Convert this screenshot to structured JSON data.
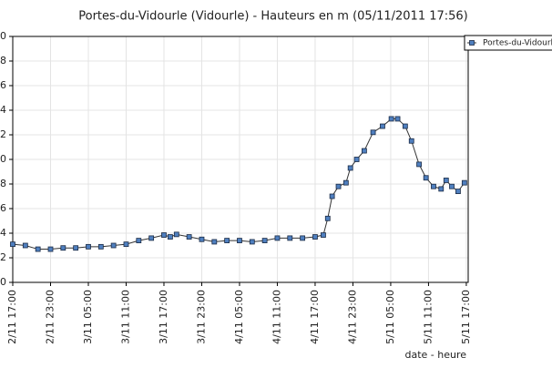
{
  "chart_data": {
    "type": "line",
    "title": "Portes-du-Vidourle (Vidourle) - Hauteurs en m (05/11/2011 17:56)",
    "x_label": "date - heure",
    "series": [
      {
        "name": "Portes-du-Vidourle",
        "color": "#4f7fbf",
        "x": [
          0,
          2,
          4,
          6,
          8,
          10,
          12,
          14,
          16,
          18,
          20,
          22,
          24,
          25,
          26,
          28,
          30,
          32,
          34,
          36,
          38,
          40,
          42,
          44,
          46,
          48,
          49.3,
          50,
          50.7,
          51.7,
          52.9,
          53.6,
          54.6,
          55.8,
          57.2,
          58.7,
          60.1,
          61.1,
          62.3,
          63.3,
          64.5,
          65.6,
          66.8,
          68,
          68.8,
          69.7,
          70.7,
          71.7
        ],
        "values": [
          0.31,
          0.3,
          0.27,
          0.27,
          0.28,
          0.28,
          0.29,
          0.29,
          0.3,
          0.31,
          0.34,
          0.36,
          0.385,
          0.37,
          0.39,
          0.37,
          0.35,
          0.33,
          0.34,
          0.34,
          0.33,
          0.34,
          0.36,
          0.36,
          0.36,
          0.37,
          0.385,
          0.52,
          0.7,
          0.78,
          0.81,
          0.93,
          1.0,
          1.07,
          1.22,
          1.27,
          1.33,
          1.33,
          1.27,
          1.15,
          0.96,
          0.85,
          0.78,
          0.76,
          0.83,
          0.78,
          0.74,
          0.81
        ]
      }
    ],
    "xlim": [
      0,
      72.3
    ],
    "xticks": [
      {
        "value": 0,
        "label": "2/11 17:00"
      },
      {
        "value": 6,
        "label": "2/11 23:00"
      },
      {
        "value": 12,
        "label": "3/11 05:00"
      },
      {
        "value": 18,
        "label": "3/11 11:00"
      },
      {
        "value": 24,
        "label": "3/11 17:00"
      },
      {
        "value": 30,
        "label": "3/11 23:00"
      },
      {
        "value": 36,
        "label": "4/11 05:00"
      },
      {
        "value": 42,
        "label": "4/11 11:00"
      },
      {
        "value": 48,
        "label": "4/11 17:00"
      },
      {
        "value": 54,
        "label": "4/11 23:00"
      },
      {
        "value": 60,
        "label": "5/11 05:00"
      },
      {
        "value": 66,
        "label": "5/11 11:00"
      },
      {
        "value": 72,
        "label": "5/11 17:00"
      }
    ],
    "ylim": [
      0,
      2
    ],
    "yticks": [
      0,
      {
        "value": 0.2,
        "label": "2"
      },
      {
        "value": 0.4,
        "label": "4"
      },
      {
        "value": 0.6,
        "label": "6"
      },
      {
        "value": 0.8,
        "label": "8"
      },
      {
        "value": 1.0,
        "label": "0"
      },
      {
        "value": 1.2,
        "label": "2"
      },
      {
        "value": 1.4,
        "label": "4"
      },
      {
        "value": 1.6,
        "label": "6"
      },
      {
        "value": 1.8,
        "label": "8"
      },
      {
        "value": 2.0,
        "label": "0"
      }
    ],
    "grid": true,
    "legend": "top-right"
  }
}
